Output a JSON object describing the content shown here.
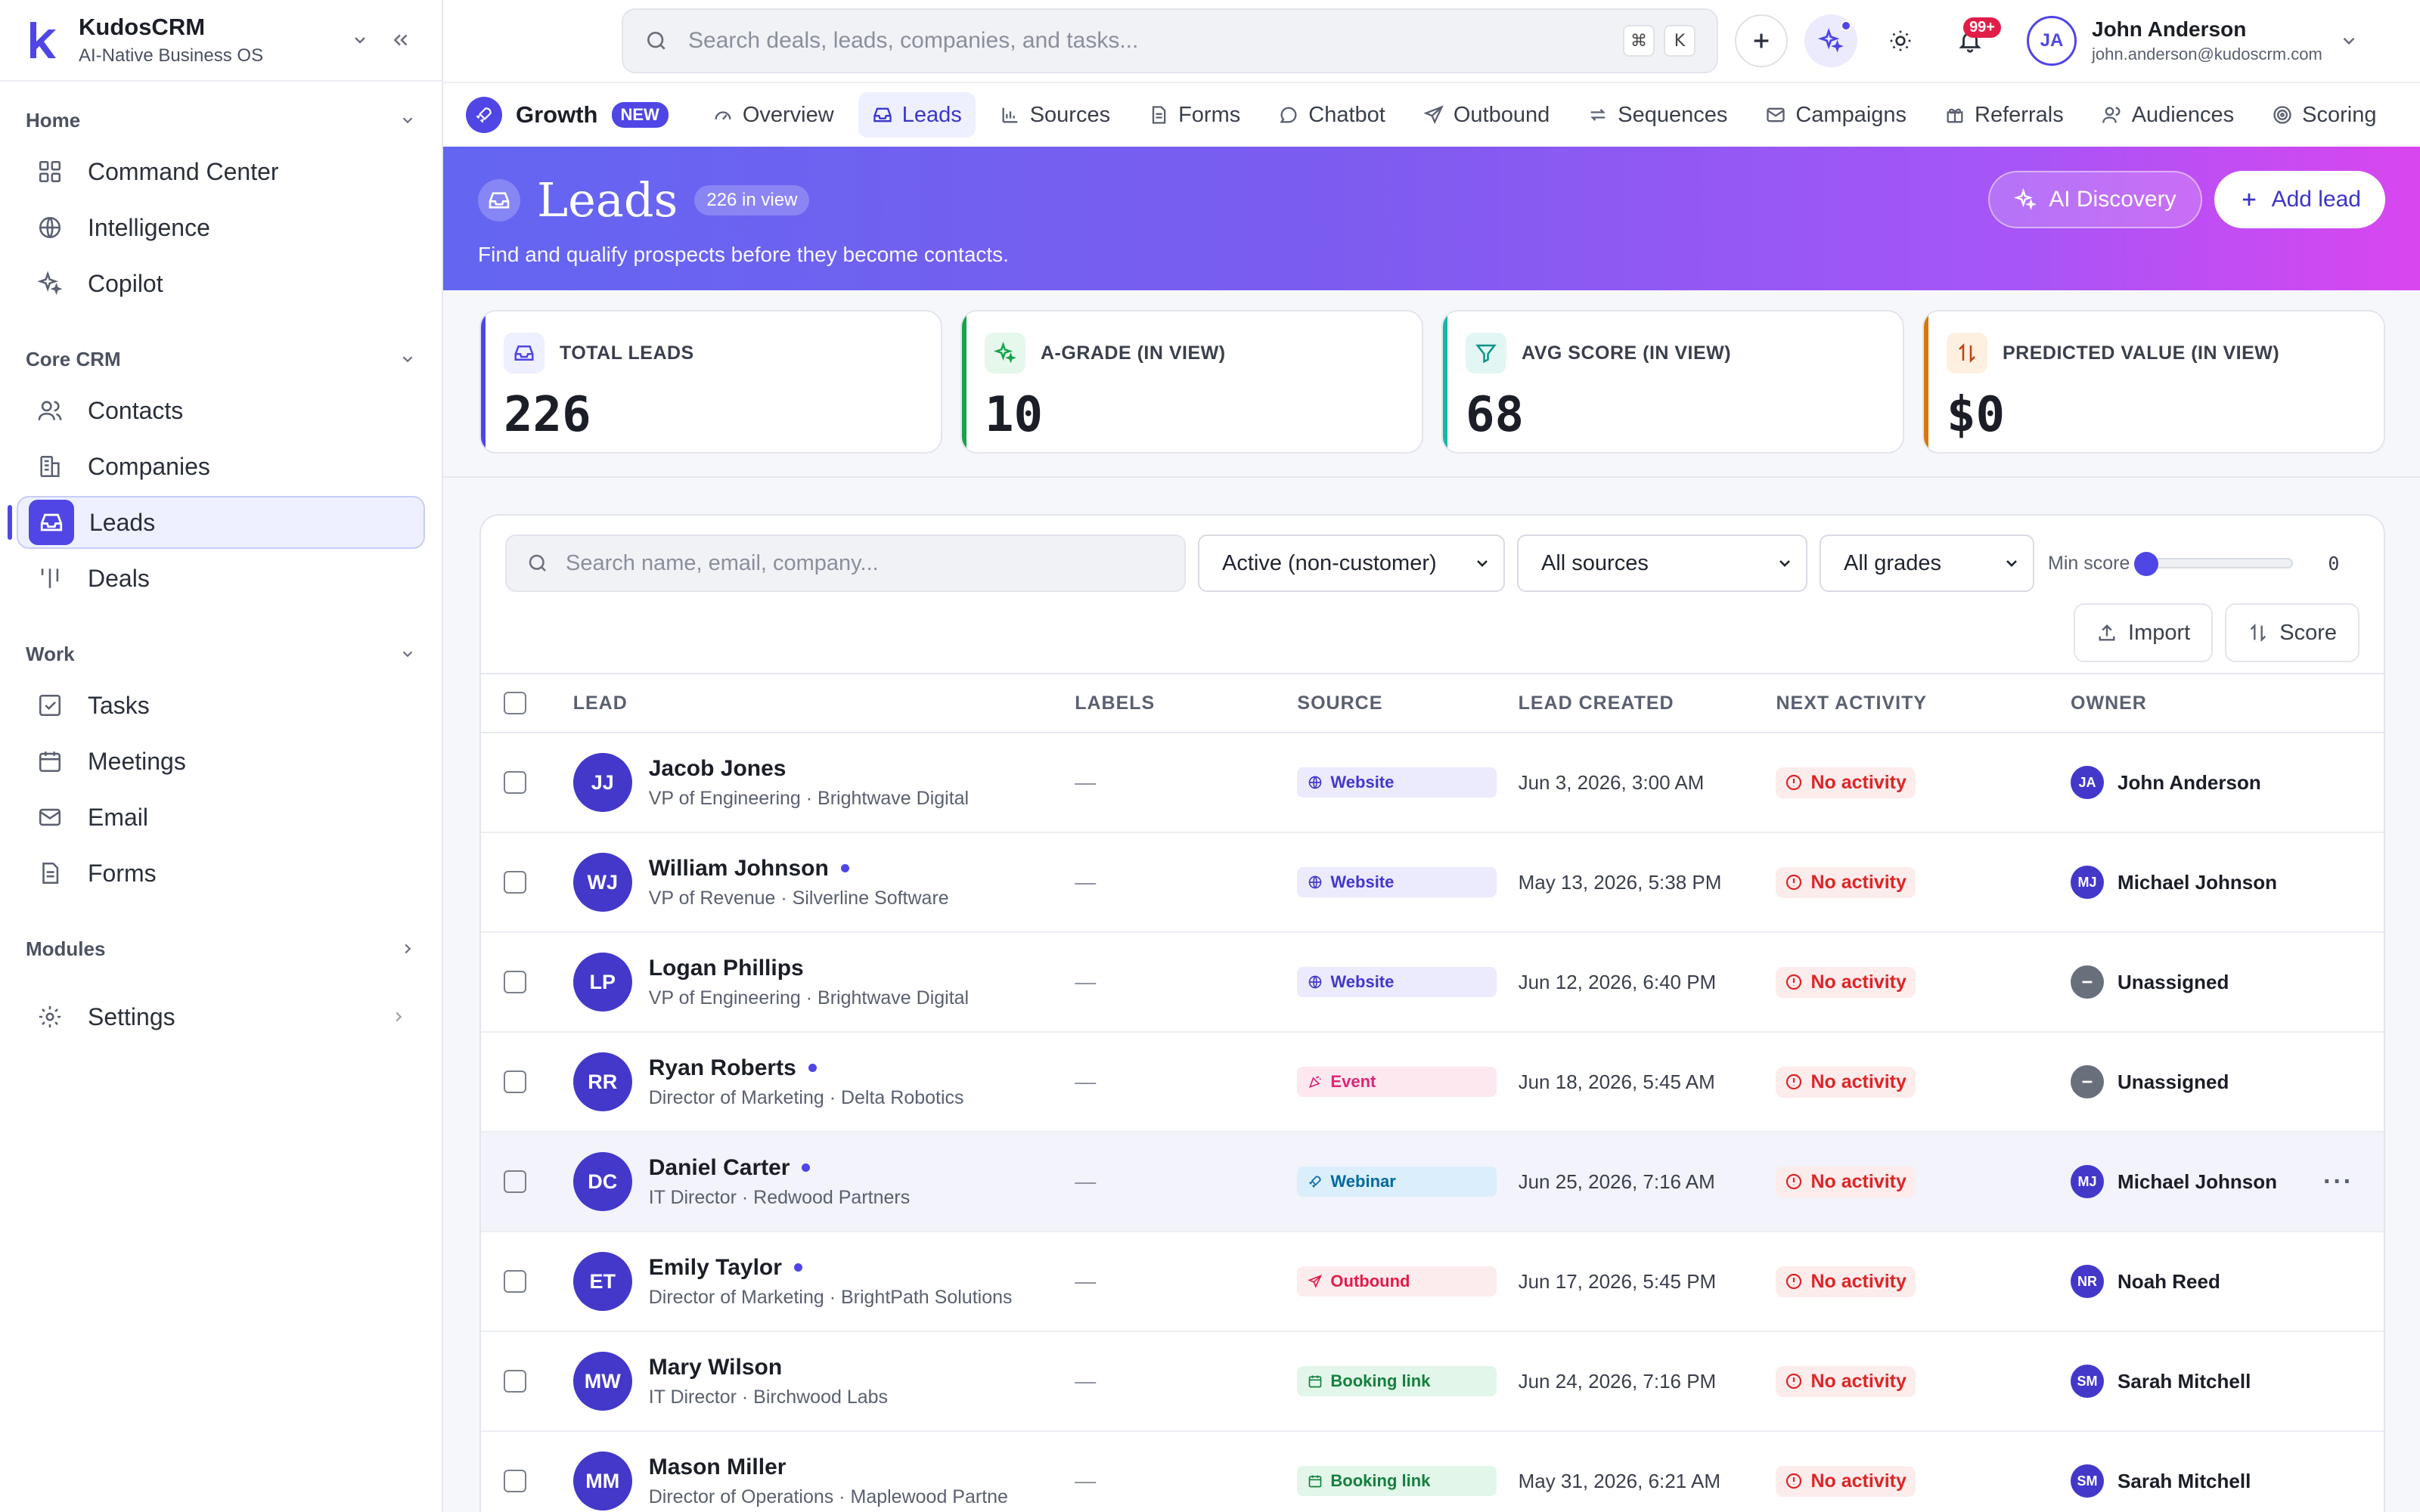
{
  "brand": {
    "name": "KudosCRM",
    "tagline": "AI-Native Business OS"
  },
  "sidebar": {
    "sections": [
      {
        "title": "Home",
        "items": [
          {
            "label": "Command Center",
            "icon": "grid-icon"
          },
          {
            "label": "Intelligence",
            "icon": "globe-icon"
          },
          {
            "label": "Copilot",
            "icon": "sparkles-icon"
          }
        ]
      },
      {
        "title": "Core CRM",
        "items": [
          {
            "label": "Contacts",
            "icon": "users-icon"
          },
          {
            "label": "Companies",
            "icon": "building-icon"
          },
          {
            "label": "Leads",
            "icon": "inbox-icon",
            "active": true
          },
          {
            "label": "Deals",
            "icon": "columns-icon"
          }
        ]
      },
      {
        "title": "Work",
        "items": [
          {
            "label": "Tasks",
            "icon": "checkbox-icon"
          },
          {
            "label": "Meetings",
            "icon": "calendar-icon"
          },
          {
            "label": "Email",
            "icon": "mail-icon"
          },
          {
            "label": "Forms",
            "icon": "file-icon"
          }
        ]
      },
      {
        "title": "Modules"
      }
    ],
    "settings_label": "Settings"
  },
  "topbar": {
    "search_placeholder": "Search deals, leads, companies, and tasks...",
    "shortcut_keys": [
      "⌘",
      "K"
    ],
    "notification_count": "99+",
    "user": {
      "initials": "JA",
      "name": "John Anderson",
      "email": "john.anderson@kudoscrm.com"
    }
  },
  "module": {
    "title": "Growth",
    "badge": "NEW",
    "tabs": [
      {
        "label": "Overview",
        "icon": "gauge-icon"
      },
      {
        "label": "Leads",
        "icon": "inbox-icon",
        "active": true
      },
      {
        "label": "Sources",
        "icon": "bar-chart-icon"
      },
      {
        "label": "Forms",
        "icon": "file-icon"
      },
      {
        "label": "Chatbot",
        "icon": "chat-icon"
      },
      {
        "label": "Outbound",
        "icon": "send-icon"
      },
      {
        "label": "Sequences",
        "icon": "repeat-icon"
      },
      {
        "label": "Campaigns",
        "icon": "mail-icon"
      },
      {
        "label": "Referrals",
        "icon": "gift-icon"
      },
      {
        "label": "Audiences",
        "icon": "users-icon"
      },
      {
        "label": "Scoring",
        "icon": "target-icon"
      }
    ]
  },
  "hero": {
    "title": "Leads",
    "count_badge": "226 in view",
    "subtitle": "Find and qualify prospects before they become contacts.",
    "ai_button": "AI Discovery",
    "add_button": "Add lead"
  },
  "kpis": [
    {
      "label": "TOTAL LEADS",
      "value": "226",
      "icon": "inbox-icon",
      "accent": "#4f46e5"
    },
    {
      "label": "A-GRADE (IN VIEW)",
      "value": "10",
      "icon": "sparkles-icon",
      "accent": "#16a34a"
    },
    {
      "label": "AVG SCORE (IN VIEW)",
      "value": "68",
      "icon": "filter-icon",
      "accent": "#14b8a6"
    },
    {
      "label": "PREDICTED VALUE (IN VIEW)",
      "value": "$0",
      "icon": "arrows-icon",
      "accent": "#d97706"
    }
  ],
  "filters": {
    "search_placeholder": "Search name, email, company...",
    "status": "Active (non-customer)",
    "source": "All sources",
    "grade": "All grades",
    "min_score_label": "Min score",
    "min_score": 0,
    "import_label": "Import",
    "score_label": "Score"
  },
  "table": {
    "columns": [
      "LEAD",
      "LABELS",
      "SOURCE",
      "LEAD CREATED",
      "NEXT ACTIVITY",
      "OWNER"
    ],
    "rows": [
      {
        "initials": "JJ",
        "name": "Jacob Jones",
        "dot": false,
        "sub": "VP of Engineering · Brightwave Digital",
        "labels": "—",
        "source": "Website",
        "source_kind": "website",
        "created": "Jun 3, 2026, 3:00 AM",
        "activity": "No activity",
        "owner_initials": "JA",
        "owner": "John Anderson"
      },
      {
        "initials": "WJ",
        "name": "William Johnson",
        "dot": true,
        "sub": "VP of Revenue · Silverline Software",
        "labels": "—",
        "source": "Website",
        "source_kind": "website",
        "created": "May 13, 2026, 5:38 PM",
        "activity": "No activity",
        "owner_initials": "MJ",
        "owner": "Michael Johnson"
      },
      {
        "initials": "LP",
        "name": "Logan Phillips",
        "dot": false,
        "sub": "VP of Engineering · Brightwave Digital",
        "labels": "—",
        "source": "Website",
        "source_kind": "website",
        "created": "Jun 12, 2026, 6:40 PM",
        "activity": "No activity",
        "owner_initials": "",
        "owner": "Unassigned"
      },
      {
        "initials": "RR",
        "name": "Ryan Roberts",
        "dot": true,
        "sub": "Director of Marketing · Delta Robotics",
        "labels": "—",
        "source": "Event",
        "source_kind": "event",
        "created": "Jun 18, 2026, 5:45 AM",
        "activity": "No activity",
        "owner_initials": "",
        "owner": "Unassigned"
      },
      {
        "initials": "DC",
        "name": "Daniel Carter",
        "dot": true,
        "sub": "IT Director · Redwood Partners",
        "labels": "—",
        "source": "Webinar",
        "source_kind": "webinar",
        "created": "Jun 25, 2026, 7:16 AM",
        "activity": "No activity",
        "owner_initials": "MJ",
        "owner": "Michael Johnson",
        "highlight": true
      },
      {
        "initials": "ET",
        "name": "Emily Taylor",
        "dot": true,
        "sub": "Director of Marketing · BrightPath Solutions",
        "labels": "—",
        "source": "Outbound",
        "source_kind": "outbound",
        "created": "Jun 17, 2026, 5:45 PM",
        "activity": "No activity",
        "owner_initials": "NR",
        "owner": "Noah Reed"
      },
      {
        "initials": "MW",
        "name": "Mary Wilson",
        "dot": false,
        "sub": "IT Director · Birchwood Labs",
        "labels": "—",
        "source": "Booking link",
        "source_kind": "booking",
        "created": "Jun 24, 2026, 7:16 PM",
        "activity": "No activity",
        "owner_initials": "SM",
        "owner": "Sarah Mitchell"
      },
      {
        "initials": "MM",
        "name": "Mason Miller",
        "dot": false,
        "sub": "Director of Operations · Maplewood Partne",
        "labels": "—",
        "source": "Booking link",
        "source_kind": "booking",
        "created": "May 31, 2026, 6:21 AM",
        "activity": "No activity",
        "owner_initials": "SM",
        "owner": "Sarah Mitchell"
      }
    ]
  }
}
